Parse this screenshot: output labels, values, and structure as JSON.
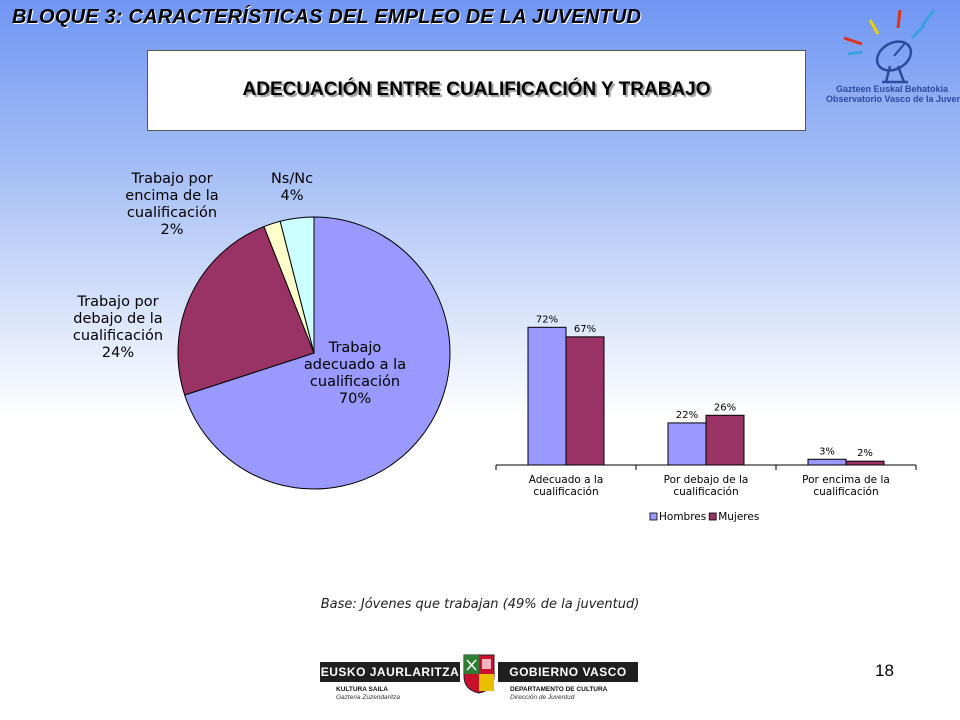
{
  "header": {
    "title": "BLOQUE 3: CARACTERÍSTICAS DEL EMPLEO DE LA JUVENTUD"
  },
  "slide_title": "ADECUACIÓN ENTRE CUALIFICACIÓN Y TRABAJO",
  "logo": {
    "icon": "satellite-dish-icon",
    "line1": "Gazteen Euskal Behatokia",
    "line2": "Observatorio Vasco de la Juventud"
  },
  "colors": {
    "hombres": "#9999ff",
    "mujeres": "#993366",
    "pie_adecuado": "#9999ff",
    "pie_debajo": "#993366",
    "pie_encima": "#ffffcc",
    "pie_nsnc": "#ccffff"
  },
  "chart_data": [
    {
      "type": "pie",
      "slices": [
        {
          "label": [
            "Trabajo",
            "adecuado a la",
            "cualificación"
          ],
          "pct_label": "70%",
          "value": 70
        },
        {
          "label": [
            "Trabajo por",
            "debajo de la",
            "cualificación"
          ],
          "pct_label": "24%",
          "value": 24
        },
        {
          "label": [
            "Trabajo por",
            "encima de la",
            "cualificación"
          ],
          "pct_label": "2%",
          "value": 2
        },
        {
          "label": [
            "Ns/Nc"
          ],
          "pct_label": "4%",
          "value": 4
        }
      ]
    },
    {
      "type": "bar",
      "categories": [
        [
          "Adecuado a la",
          "cualificación"
        ],
        [
          "Por debajo de la",
          "cualificación"
        ],
        [
          "Por encima de la",
          "cualificación"
        ]
      ],
      "series": [
        {
          "name": "Hombres",
          "values": [
            72,
            22,
            3
          ],
          "labels": [
            "72%",
            "22%",
            "3%"
          ]
        },
        {
          "name": "Mujeres",
          "values": [
            67,
            26,
            2
          ],
          "labels": [
            "67%",
            "26%",
            "2%"
          ]
        }
      ],
      "ylim": [
        0,
        80
      ],
      "legend": "bottom"
    }
  ],
  "base_note": "Base: Jóvenes que trabajan (49% de la juventud)",
  "page_number": "18",
  "footer": {
    "left_bar": "EUSKO JAURLARITZA",
    "right_bar": "GOBIERNO VASCO",
    "left_sub1": "KULTURA SAILA",
    "left_sub2": "Gazteria Zuzendaritza",
    "right_sub1": "DEPARTAMENTO DE CULTURA",
    "right_sub2": "Dirección de Juventud",
    "emblem": "coat-of-arms-icon"
  }
}
